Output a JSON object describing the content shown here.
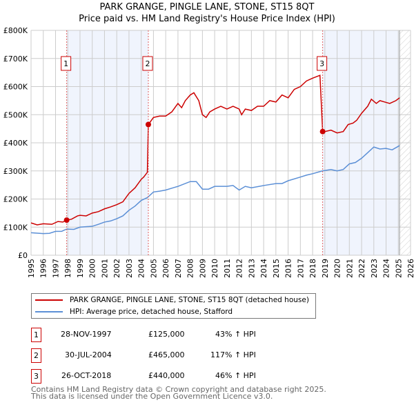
{
  "chart_data": {
    "type": "line",
    "title": "PARK GRANGE, PINGLE LANE, STONE, ST15 8QT",
    "subtitle": "Price paid vs. HM Land Registry's House Price Index (HPI)",
    "xlim": [
      1995,
      2026
    ],
    "ylim": [
      0,
      800000
    ],
    "yticks": [
      "£0",
      "£100K",
      "£200K",
      "£300K",
      "£400K",
      "£500K",
      "£600K",
      "£700K",
      "£800K"
    ],
    "xticks": [
      "1995",
      "1996",
      "1997",
      "1998",
      "1999",
      "2000",
      "2001",
      "2002",
      "2003",
      "2004",
      "2005",
      "2006",
      "2007",
      "2008",
      "2009",
      "2010",
      "2011",
      "2012",
      "2013",
      "2014",
      "2015",
      "2016",
      "2017",
      "2018",
      "2019",
      "2020",
      "2021",
      "2022",
      "2023",
      "2024",
      "2025",
      "2026"
    ],
    "grid": true,
    "series": [
      {
        "name": "PARK GRANGE, PINGLE LANE, STONE, ST15 8QT (detached house)",
        "color": "#cc0000",
        "points": [
          [
            1995,
            115
          ],
          [
            1995.5,
            108
          ],
          [
            1996,
            112
          ],
          [
            1996.7,
            110
          ],
          [
            1997.2,
            120
          ],
          [
            1997.6,
            118
          ],
          [
            1997.9,
            125
          ],
          [
            1998.3,
            128
          ],
          [
            1998.8,
            140
          ],
          [
            1999,
            142
          ],
          [
            1999.5,
            140
          ],
          [
            2000,
            150
          ],
          [
            2000.5,
            155
          ],
          [
            2001,
            165
          ],
          [
            2001.5,
            172
          ],
          [
            2002,
            180
          ],
          [
            2002.5,
            190
          ],
          [
            2003,
            220
          ],
          [
            2003.5,
            240
          ],
          [
            2004,
            270
          ],
          [
            2004.2,
            278
          ],
          [
            2004.5,
            295
          ],
          [
            2004.58,
            465
          ],
          [
            2005,
            490
          ],
          [
            2005.5,
            495
          ],
          [
            2006,
            495
          ],
          [
            2006.5,
            510
          ],
          [
            2007,
            540
          ],
          [
            2007.3,
            525
          ],
          [
            2007.6,
            550
          ],
          [
            2008,
            570
          ],
          [
            2008.3,
            578
          ],
          [
            2008.7,
            550
          ],
          [
            2009,
            500
          ],
          [
            2009.3,
            490
          ],
          [
            2009.6,
            510
          ],
          [
            2010,
            520
          ],
          [
            2010.5,
            530
          ],
          [
            2011,
            520
          ],
          [
            2011.5,
            530
          ],
          [
            2012,
            520
          ],
          [
            2012.2,
            500
          ],
          [
            2012.5,
            520
          ],
          [
            2013,
            515
          ],
          [
            2013.5,
            530
          ],
          [
            2014,
            530
          ],
          [
            2014.5,
            550
          ],
          [
            2015,
            545
          ],
          [
            2015.5,
            570
          ],
          [
            2016,
            560
          ],
          [
            2016.5,
            590
          ],
          [
            2017,
            600
          ],
          [
            2017.5,
            620
          ],
          [
            2018,
            630
          ],
          [
            2018.6,
            640
          ],
          [
            2018.82,
            440
          ],
          [
            2019,
            440
          ],
          [
            2019.5,
            445
          ],
          [
            2020,
            435
          ],
          [
            2020.5,
            440
          ],
          [
            2020.9,
            465
          ],
          [
            2021.3,
            470
          ],
          [
            2021.6,
            480
          ],
          [
            2022,
            505
          ],
          [
            2022.5,
            530
          ],
          [
            2022.8,
            555
          ],
          [
            2023.2,
            540
          ],
          [
            2023.5,
            550
          ],
          [
            2023.9,
            545
          ],
          [
            2024.3,
            540
          ],
          [
            2024.8,
            550
          ],
          [
            2025.1,
            560
          ]
        ]
      },
      {
        "name": "HPI: Average price, detached house, Stafford",
        "color": "#5b8fd6",
        "points": [
          [
            1995,
            80
          ],
          [
            1996,
            77
          ],
          [
            1996.5,
            78
          ],
          [
            1997,
            85
          ],
          [
            1997.5,
            85
          ],
          [
            1997.9,
            93
          ],
          [
            1998.5,
            92
          ],
          [
            1999,
            100
          ],
          [
            2000,
            103
          ],
          [
            2000.5,
            110
          ],
          [
            2001,
            118
          ],
          [
            2001.5,
            122
          ],
          [
            2002,
            130
          ],
          [
            2002.5,
            140
          ],
          [
            2003,
            160
          ],
          [
            2003.5,
            175
          ],
          [
            2004,
            195
          ],
          [
            2004.5,
            205
          ],
          [
            2005,
            225
          ],
          [
            2005.5,
            228
          ],
          [
            2006,
            232
          ],
          [
            2007,
            245
          ],
          [
            2008,
            262
          ],
          [
            2008.5,
            262
          ],
          [
            2009,
            235
          ],
          [
            2009.5,
            235
          ],
          [
            2010,
            245
          ],
          [
            2011,
            245
          ],
          [
            2011.5,
            248
          ],
          [
            2012,
            232
          ],
          [
            2012.5,
            245
          ],
          [
            2013,
            240
          ],
          [
            2014,
            248
          ],
          [
            2015,
            255
          ],
          [
            2015.5,
            255
          ],
          [
            2016,
            265
          ],
          [
            2017,
            278
          ],
          [
            2017.5,
            285
          ],
          [
            2018,
            290
          ],
          [
            2018.8,
            300
          ],
          [
            2019.5,
            305
          ],
          [
            2020,
            300
          ],
          [
            2020.5,
            305
          ],
          [
            2021,
            325
          ],
          [
            2021.5,
            330
          ],
          [
            2022,
            345
          ],
          [
            2022.5,
            365
          ],
          [
            2023,
            385
          ],
          [
            2023.5,
            378
          ],
          [
            2024,
            380
          ],
          [
            2024.5,
            375
          ],
          [
            2025.1,
            390
          ]
        ]
      }
    ],
    "sales": [
      {
        "n": "1",
        "x": 1997.91,
        "y": 125,
        "date": "28-NOV-1997",
        "price": "£125,000",
        "hpi": "43% ↑ HPI"
      },
      {
        "n": "2",
        "x": 2004.58,
        "y": 465,
        "date": "30-JUL-2004",
        "price": "£465,000",
        "hpi": "117% ↑ HPI"
      },
      {
        "n": "3",
        "x": 2018.82,
        "y": 440,
        "date": "26-OCT-2018",
        "price": "£440,000",
        "hpi": "46% ↑ HPI"
      }
    ],
    "shaded": [
      [
        1997.91,
        2004.58
      ],
      [
        2018.82,
        2025.1
      ]
    ],
    "forecast_from": 2025.1
  },
  "footer": [
    "Contains HM Land Registry data © Crown copyright and database right 2025.",
    "This data is licensed under the Open Government Licence v3.0."
  ]
}
